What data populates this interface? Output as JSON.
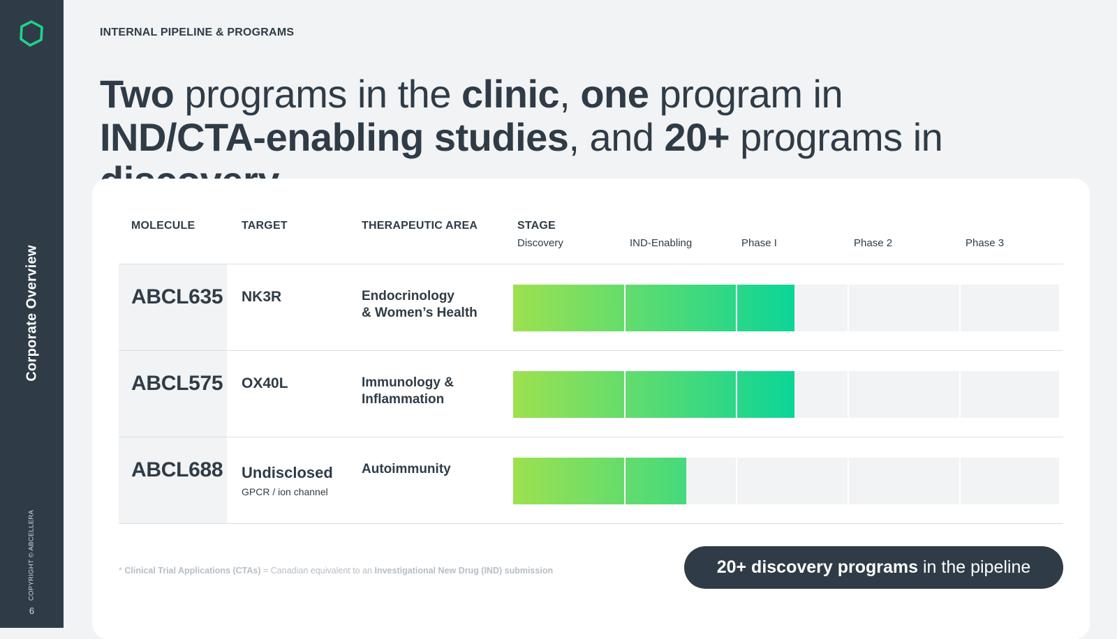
{
  "sidebar": {
    "title": "Corporate Overview",
    "copyright": "COPYRIGHT © ABCELLERA",
    "page_number": "6",
    "logo_icon": "hexagon-logo-icon",
    "accent_color": "#1fd48a"
  },
  "header": {
    "section_label": "INTERNAL PIPELINE & PROGRAMS",
    "headline": {
      "bold_1": "Two",
      "text_1": " programs in the ",
      "bold_2": "clinic",
      "text_2": ", ",
      "bold_3": "one",
      "text_3": " program in",
      "bold_4": "IND/CTA-enabling studies",
      "text_4": ", and ",
      "bold_5": "20+",
      "text_5": " programs in ",
      "bold_6": "discovery",
      "text_6": "."
    }
  },
  "table": {
    "columns": {
      "molecule": "MOLECULE",
      "target": "TARGET",
      "therapeutic_area": "THERAPEUTIC AREA",
      "stage": "STAGE"
    },
    "stages": [
      "Discovery",
      "IND-Enabling",
      "Phase I",
      "Phase 2",
      "Phase 3"
    ],
    "rows": [
      {
        "molecule": "ABCL635",
        "target": "NK3R",
        "target_sub": "",
        "area_line1": "Endocrinology",
        "area_line2": "& Women’s Health",
        "progress_stages": 2.52
      },
      {
        "molecule": "ABCL575",
        "target": "OX40L",
        "target_sub": "",
        "area_line1": "Immunology &",
        "area_line2": "Inflammation",
        "progress_stages": 2.52
      },
      {
        "molecule": "ABCL688",
        "target": "Undisclosed",
        "target_sub": "GPCR / ion channel",
        "area_line1": "Autoimmunity",
        "area_line2": "",
        "progress_stages": 1.55
      }
    ],
    "bar_colors": {
      "start": "#9ee150",
      "end": "#0dd597",
      "empty": "#f1f3f4"
    }
  },
  "footnote": {
    "prefix": "* ",
    "bold_1": "Clinical Trial Applications (CTAs)",
    "text_1": " = Canadian equivalent to an ",
    "bold_2": "Investigational New Drug (IND) submission"
  },
  "callout": {
    "bold": "20+ discovery programs",
    "text": " in the pipeline"
  }
}
